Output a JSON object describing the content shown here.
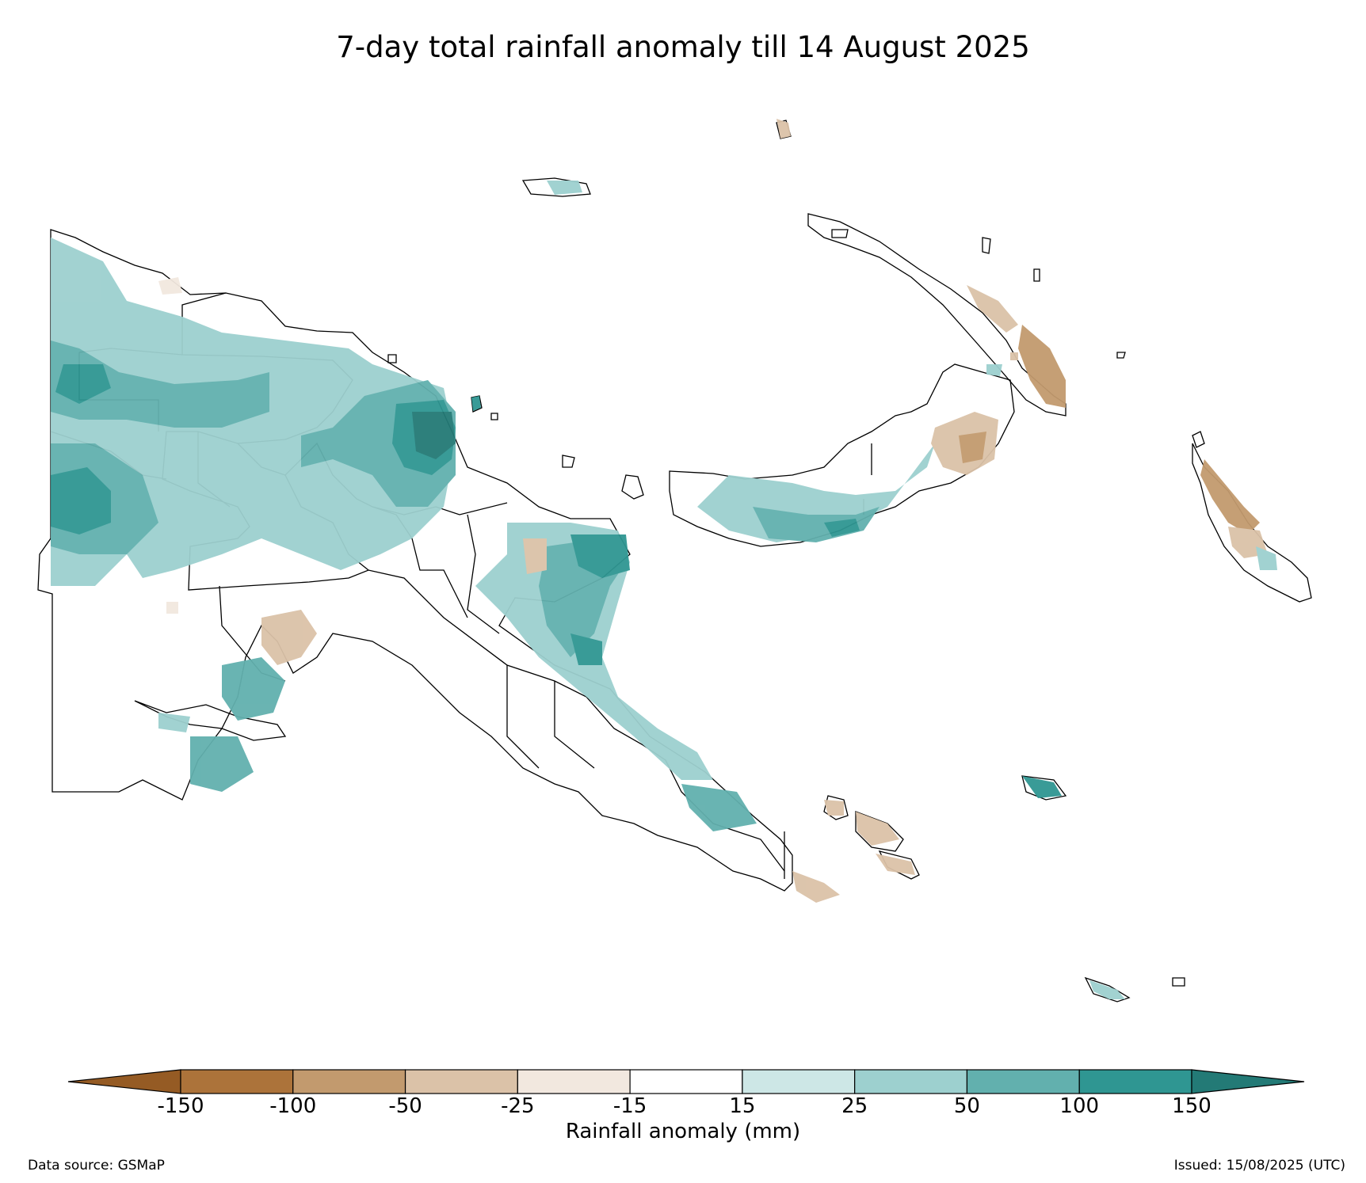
{
  "title": "7-day total rainfall anomaly till 14 August 2025",
  "colorbar": {
    "label": "Rainfall anomaly (mm)",
    "ticks": [
      "-150",
      "-100",
      "-50",
      "-25",
      "-15",
      "15",
      "25",
      "50",
      "100",
      "150"
    ],
    "colors": {
      "lt_-150": "#955b24",
      "-150_-100": "#ac733a",
      "-100_-50": "#c29a6e",
      "-50_-25": "#dbc2a8",
      "-25_-15": "#f2e8df",
      "-15_15": "#ffffff",
      "15_25": "#cde7e6",
      "25_50": "#9dd0cf",
      "50_100": "#62b0ae",
      "100_150": "#2f9692",
      "gt_150": "#237a76"
    }
  },
  "footer": {
    "source": "Data source: GSMaP",
    "issued": "Issued: 15/08/2025 (UTC)"
  }
}
